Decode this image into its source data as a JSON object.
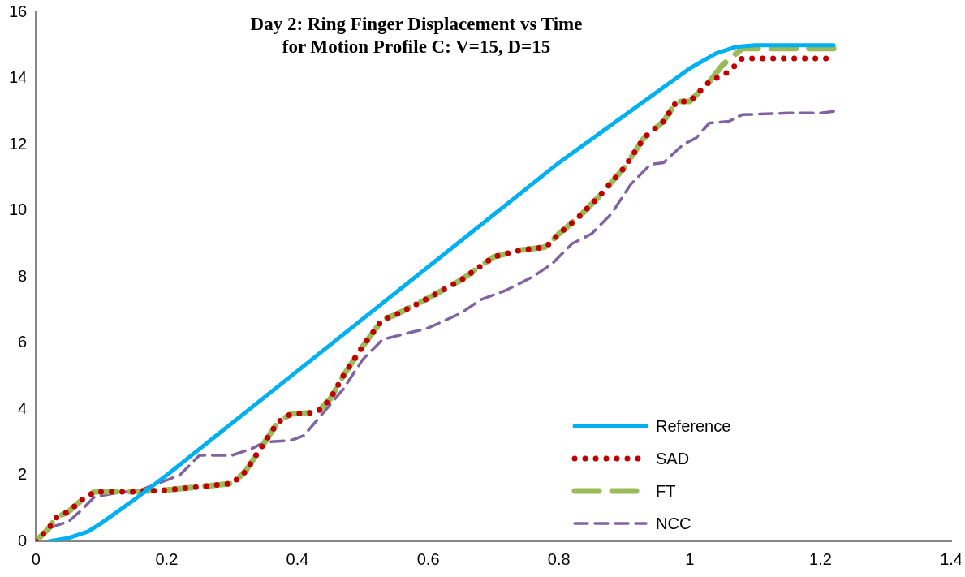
{
  "chart_data": {
    "type": "line",
    "title": "Day 2: Ring Finger Displacement vs Time\nfor Motion Profile C: V=15, D=15",
    "xlim": [
      0,
      1.4
    ],
    "xticks": [
      0,
      0.2,
      0.4,
      0.6,
      0.8,
      1,
      1.2,
      1.4
    ],
    "ylim": [
      0,
      16
    ],
    "yticks": [
      0,
      2,
      4,
      6,
      8,
      10,
      12,
      14,
      16
    ],
    "grid": false,
    "legend": "bottom right",
    "marker": "none",
    "series": [
      {
        "name": "Reference",
        "color": "#00b0f0",
        "line_style": "solid",
        "x": [
          0.02,
          0.05,
          0.08,
          0.1,
          0.15,
          0.2,
          0.4,
          0.6,
          0.8,
          1.0,
          1.04,
          1.07,
          1.1,
          1.22
        ],
        "values": [
          0,
          0.1,
          0.3,
          0.55,
          1.25,
          2.0,
          5.15,
          8.3,
          11.45,
          14.3,
          14.75,
          14.95,
          15,
          15
        ]
      },
      {
        "name": "SAD",
        "color": "#c00000",
        "line_style": "dotted",
        "x": [
          0,
          0.02,
          0.03,
          0.05,
          0.07,
          0.09,
          0.15,
          0.2,
          0.25,
          0.3,
          0.32,
          0.35,
          0.37,
          0.39,
          0.43,
          0.45,
          0.47,
          0.5,
          0.53,
          0.55,
          0.6,
          0.65,
          0.7,
          0.74,
          0.78,
          0.8,
          0.83,
          0.86,
          0.9,
          0.93,
          0.96,
          0.98,
          1.0,
          1.03,
          1.06,
          1.08,
          1.22
        ],
        "values": [
          0,
          0.4,
          0.7,
          0.9,
          1.25,
          1.5,
          1.5,
          1.55,
          1.65,
          1.75,
          2.1,
          3.0,
          3.6,
          3.85,
          3.9,
          4.3,
          5.0,
          5.9,
          6.7,
          6.85,
          7.35,
          7.9,
          8.6,
          8.8,
          8.9,
          9.3,
          9.8,
          10.4,
          11.3,
          12.2,
          12.7,
          13.3,
          13.3,
          13.9,
          14.2,
          14.6,
          14.6
        ]
      },
      {
        "name": "FT",
        "color": "#9bbb59",
        "line_style": "dashed",
        "x": [
          0,
          0.02,
          0.03,
          0.05,
          0.07,
          0.09,
          0.15,
          0.2,
          0.25,
          0.3,
          0.32,
          0.35,
          0.37,
          0.39,
          0.43,
          0.45,
          0.47,
          0.5,
          0.53,
          0.55,
          0.6,
          0.65,
          0.7,
          0.74,
          0.78,
          0.8,
          0.83,
          0.86,
          0.9,
          0.93,
          0.96,
          0.98,
          1.0,
          1.03,
          1.05,
          1.08,
          1.22
        ],
        "values": [
          0,
          0.4,
          0.7,
          0.9,
          1.25,
          1.5,
          1.5,
          1.55,
          1.65,
          1.75,
          2.1,
          3.0,
          3.6,
          3.85,
          3.9,
          4.3,
          5.0,
          5.9,
          6.7,
          6.85,
          7.35,
          7.9,
          8.6,
          8.8,
          8.9,
          9.3,
          9.8,
          10.4,
          11.3,
          12.2,
          12.7,
          13.3,
          13.3,
          13.9,
          14.4,
          14.9,
          14.9
        ]
      },
      {
        "name": "NCC",
        "color": "#8064a2",
        "line_style": "dashed",
        "x": [
          0,
          0.02,
          0.05,
          0.07,
          0.09,
          0.12,
          0.16,
          0.2,
          0.22,
          0.25,
          0.3,
          0.33,
          0.35,
          0.39,
          0.41,
          0.44,
          0.47,
          0.5,
          0.53,
          0.57,
          0.6,
          0.65,
          0.68,
          0.72,
          0.76,
          0.79,
          0.82,
          0.85,
          0.88,
          0.91,
          0.94,
          0.96,
          0.99,
          1.01,
          1.03,
          1.06,
          1.08,
          1.15,
          1.2,
          1.22
        ],
        "values": [
          0,
          0.4,
          0.6,
          0.95,
          1.35,
          1.45,
          1.55,
          1.85,
          2.0,
          2.6,
          2.6,
          2.8,
          3.0,
          3.05,
          3.2,
          3.9,
          4.6,
          5.5,
          6.1,
          6.3,
          6.45,
          6.9,
          7.3,
          7.6,
          8.0,
          8.4,
          9.0,
          9.3,
          9.9,
          10.8,
          11.4,
          11.45,
          12.0,
          12.2,
          12.65,
          12.7,
          12.9,
          12.95,
          12.95,
          13.0
        ]
      }
    ]
  }
}
